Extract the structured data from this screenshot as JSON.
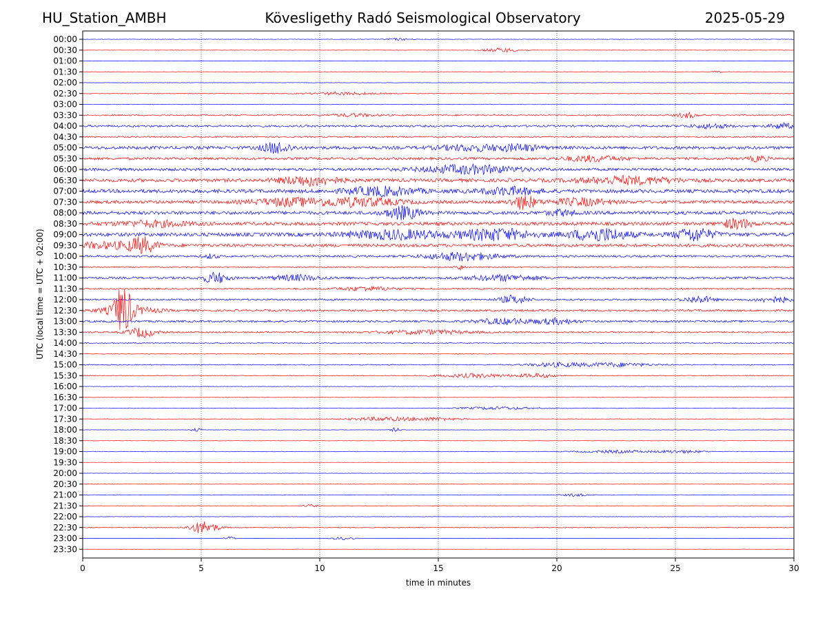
{
  "header": {
    "station": "HU_Station_AMBH",
    "observatory": "Kövesligethy Radó Seismological Observatory",
    "date": "2025-05-29"
  },
  "chart_data": {
    "type": "line",
    "title": "Kövesligethy Radó Seismological Observatory",
    "xlabel": "time in minutes",
    "ylabel": "UTC (local time = UTC + 02:00)",
    "xlim": [
      0,
      30
    ],
    "xticks": [
      0,
      5,
      10,
      15,
      20,
      25,
      30
    ],
    "grid_x": true,
    "colors": [
      "#0000ff",
      "#ff0000"
    ],
    "rows": [
      "00:00",
      "00:30",
      "01:00",
      "01:30",
      "02:00",
      "02:30",
      "03:00",
      "03:30",
      "04:00",
      "04:30",
      "05:00",
      "05:30",
      "06:00",
      "06:30",
      "07:00",
      "07:30",
      "08:00",
      "08:30",
      "09:00",
      "09:30",
      "10:00",
      "10:30",
      "11:00",
      "11:30",
      "12:00",
      "12:30",
      "13:00",
      "13:30",
      "14:00",
      "14:30",
      "15:00",
      "15:30",
      "16:00",
      "16:30",
      "17:00",
      "17:30",
      "18:00",
      "18:30",
      "19:00",
      "19:30",
      "20:00",
      "20:30",
      "21:00",
      "21:30",
      "22:00",
      "22:30",
      "23:00",
      "23:30"
    ],
    "noise": [
      0.3,
      0.3,
      0.2,
      0.3,
      0.3,
      0.5,
      0.4,
      0.9,
      1.4,
      1.0,
      2.2,
      1.8,
      2.0,
      2.4,
      2.6,
      2.2,
      2.4,
      2.4,
      2.6,
      2.2,
      1.4,
      0.8,
      1.6,
      1.0,
      1.2,
      1.4,
      1.4,
      1.0,
      0.6,
      0.4,
      0.6,
      0.5,
      0.3,
      0.3,
      0.4,
      0.4,
      0.3,
      0.3,
      0.4,
      0.2,
      0.2,
      0.3,
      0.4,
      0.3,
      0.2,
      0.5,
      0.2,
      0.2
    ],
    "events": [
      {
        "row": "00:00",
        "t": 13.3,
        "amp": 1.5,
        "dur": 0.6
      },
      {
        "row": "00:30",
        "t": 17.7,
        "amp": 3,
        "dur": 0.8
      },
      {
        "row": "01:30",
        "t": 26.8,
        "amp": 1.5,
        "dur": 0.2
      },
      {
        "row": "02:30",
        "t": 11.0,
        "amp": 2,
        "dur": 1.5
      },
      {
        "row": "03:30",
        "t": 11.5,
        "amp": 2,
        "dur": 1.0
      },
      {
        "row": "03:30",
        "t": 25.5,
        "amp": 4,
        "dur": 0.4
      },
      {
        "row": "04:00",
        "t": 26.5,
        "amp": 3,
        "dur": 0.8
      },
      {
        "row": "04:00",
        "t": 29.5,
        "amp": 4,
        "dur": 0.5
      },
      {
        "row": "05:00",
        "t": 8.2,
        "amp": 8,
        "dur": 0.6
      },
      {
        "row": "05:00",
        "t": 16.5,
        "amp": 4,
        "dur": 1.5
      },
      {
        "row": "05:00",
        "t": 18.5,
        "amp": 4,
        "dur": 0.8
      },
      {
        "row": "05:30",
        "t": 21.5,
        "amp": 4,
        "dur": 1.2
      },
      {
        "row": "05:30",
        "t": 28.5,
        "amp": 4,
        "dur": 0.4
      },
      {
        "row": "06:00",
        "t": 16.3,
        "amp": 6,
        "dur": 2.0
      },
      {
        "row": "06:30",
        "t": 9.6,
        "amp": 7,
        "dur": 1.2
      },
      {
        "row": "06:30",
        "t": 23.0,
        "amp": 5,
        "dur": 2.0
      },
      {
        "row": "07:00",
        "t": 12.6,
        "amp": 6,
        "dur": 1.5
      },
      {
        "row": "07:00",
        "t": 18.0,
        "amp": 5,
        "dur": 1.2
      },
      {
        "row": "07:30",
        "t": 8.6,
        "amp": 5,
        "dur": 1.5
      },
      {
        "row": "07:30",
        "t": 11.6,
        "amp": 6,
        "dur": 1.8
      },
      {
        "row": "07:30",
        "t": 18.6,
        "amp": 10,
        "dur": 0.5
      },
      {
        "row": "07:30",
        "t": 21.0,
        "amp": 5,
        "dur": 1.2
      },
      {
        "row": "08:00",
        "t": 13.5,
        "amp": 9,
        "dur": 0.7
      },
      {
        "row": "08:00",
        "t": 20.2,
        "amp": 4,
        "dur": 0.6
      },
      {
        "row": "08:30",
        "t": 27.6,
        "amp": 7,
        "dur": 0.6
      },
      {
        "row": "08:30",
        "t": 3.0,
        "amp": 4,
        "dur": 1.5
      },
      {
        "row": "09:00",
        "t": 13.2,
        "amp": 6,
        "dur": 2.0
      },
      {
        "row": "09:00",
        "t": 17.4,
        "amp": 8,
        "dur": 1.5
      },
      {
        "row": "09:00",
        "t": 21.8,
        "amp": 9,
        "dur": 1.2
      },
      {
        "row": "09:00",
        "t": 25.8,
        "amp": 9,
        "dur": 0.8
      },
      {
        "row": "09:30",
        "t": 2.5,
        "amp": 10,
        "dur": 0.6
      },
      {
        "row": "09:30",
        "t": 1.0,
        "amp": 4,
        "dur": 1.5
      },
      {
        "row": "10:00",
        "t": 16.0,
        "amp": 6,
        "dur": 1.5
      },
      {
        "row": "10:00",
        "t": 5.4,
        "amp": 3,
        "dur": 0.3
      },
      {
        "row": "10:30",
        "t": 15.9,
        "amp": 4,
        "dur": 0.2
      },
      {
        "row": "11:00",
        "t": 5.6,
        "amp": 8,
        "dur": 0.5
      },
      {
        "row": "11:00",
        "t": 9.0,
        "amp": 4,
        "dur": 1.0
      },
      {
        "row": "11:00",
        "t": 17.8,
        "amp": 4,
        "dur": 1.5
      },
      {
        "row": "11:30",
        "t": 12.0,
        "amp": 3,
        "dur": 1.2
      },
      {
        "row": "12:00",
        "t": 18.2,
        "amp": 6,
        "dur": 0.6
      },
      {
        "row": "12:00",
        "t": 26.0,
        "amp": 5,
        "dur": 0.6
      },
      {
        "row": "12:00",
        "t": 29.2,
        "amp": 4,
        "dur": 0.8
      },
      {
        "row": "12:30",
        "t": 1.7,
        "amp": 32,
        "dur": 0.35
      },
      {
        "row": "12:30",
        "t": 1.9,
        "amp": 6,
        "dur": 1.2
      },
      {
        "row": "13:00",
        "t": 17.8,
        "amp": 4,
        "dur": 1.2
      },
      {
        "row": "13:00",
        "t": 20.0,
        "amp": 4,
        "dur": 0.8
      },
      {
        "row": "13:30",
        "t": 2.5,
        "amp": 7,
        "dur": 0.6
      },
      {
        "row": "13:30",
        "t": 14.5,
        "amp": 3,
        "dur": 2.0
      },
      {
        "row": "15:00",
        "t": 20.0,
        "amp": 3,
        "dur": 1.2
      },
      {
        "row": "15:00",
        "t": 22.5,
        "amp": 3,
        "dur": 1.5
      },
      {
        "row": "15:30",
        "t": 16.5,
        "amp": 3,
        "dur": 1.5
      },
      {
        "row": "15:30",
        "t": 19.2,
        "amp": 3,
        "dur": 0.8
      },
      {
        "row": "17:00",
        "t": 17.5,
        "amp": 2,
        "dur": 1.5
      },
      {
        "row": "17:30",
        "t": 12.8,
        "amp": 3,
        "dur": 1.5
      },
      {
        "row": "17:30",
        "t": 15.0,
        "amp": 2,
        "dur": 1.0
      },
      {
        "row": "18:00",
        "t": 4.8,
        "amp": 3,
        "dur": 0.2
      },
      {
        "row": "18:00",
        "t": 13.2,
        "amp": 3,
        "dur": 0.2
      },
      {
        "row": "19:00",
        "t": 22.5,
        "amp": 2,
        "dur": 1.5
      },
      {
        "row": "19:00",
        "t": 25.2,
        "amp": 2,
        "dur": 1.0
      },
      {
        "row": "21:00",
        "t": 20.8,
        "amp": 2,
        "dur": 0.5
      },
      {
        "row": "21:30",
        "t": 9.6,
        "amp": 2,
        "dur": 0.3
      },
      {
        "row": "22:30",
        "t": 5.1,
        "amp": 9,
        "dur": 0.6
      },
      {
        "row": "23:00",
        "t": 6.2,
        "amp": 3,
        "dur": 0.2
      },
      {
        "row": "23:00",
        "t": 11.0,
        "amp": 2,
        "dur": 0.5
      }
    ]
  }
}
